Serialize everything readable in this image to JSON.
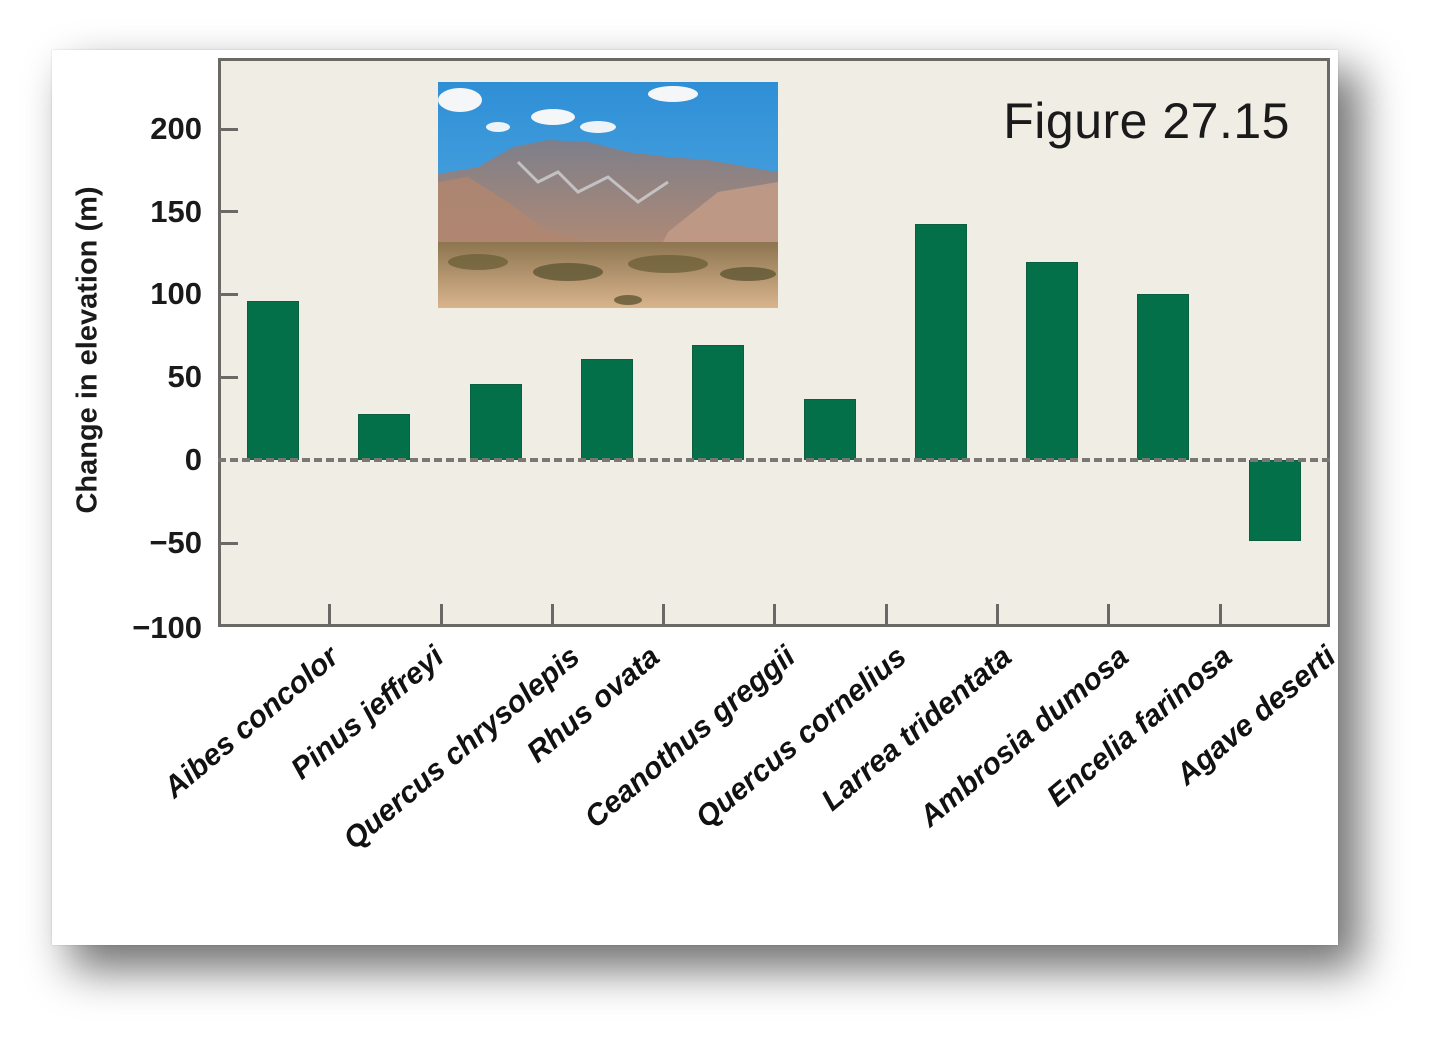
{
  "figure": {
    "label": "Figure 27.15",
    "photo_description": "desert mountain landscape photo"
  },
  "axes": {
    "ylabel": "Change in elevation (m)",
    "yticks": [
      "200",
      "150",
      "100",
      "50",
      "0",
      "−50",
      "−100"
    ]
  },
  "colors": {
    "bar": "#03704a",
    "plot_background": "#efede4",
    "frame": "#6b6965"
  },
  "chart_data": {
    "type": "bar",
    "title": "Figure 27.15",
    "xlabel": "",
    "ylabel": "Change in elevation (m)",
    "ylim": [
      -100,
      230
    ],
    "yticks": [
      -100,
      -50,
      0,
      50,
      100,
      150,
      200
    ],
    "grid": false,
    "reference_line": {
      "y": 0,
      "style": "dashed"
    },
    "categories": [
      "Aibes concolor",
      "Pinus jeffreyi",
      "Quercus chrysolepis",
      "Rhus ovata",
      "Ceanothus greggii",
      "Quercus cornelius",
      "Larrea tridentata",
      "Ambrosia dumosa",
      "Encelia farinosa",
      "Agave deserti"
    ],
    "values": [
      96,
      28,
      46,
      61,
      69,
      37,
      142,
      119,
      100,
      -49
    ],
    "legend": null,
    "annotations": [
      "Figure 27.15",
      "inset photo of desert mountains"
    ]
  }
}
